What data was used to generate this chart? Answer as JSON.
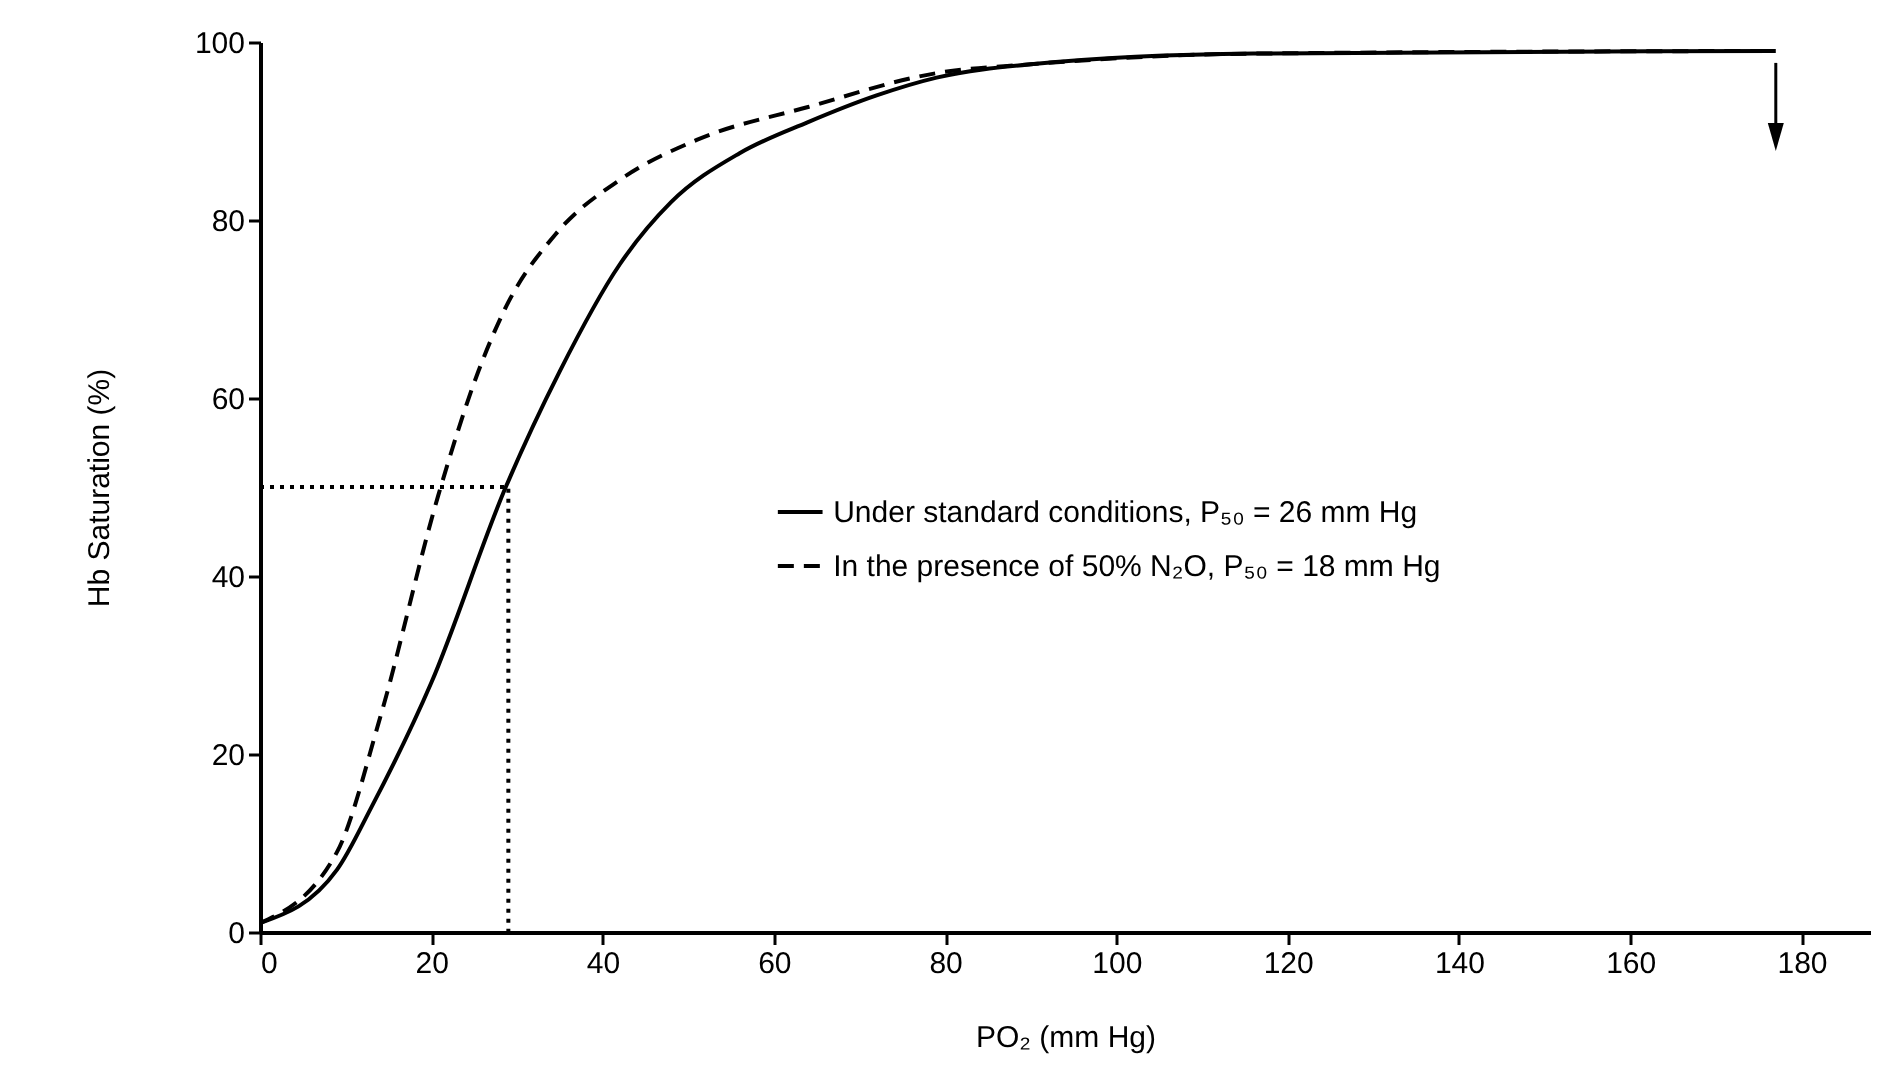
{
  "chart_data": {
    "type": "line",
    "xlabel": "PO₂ (mm Hg)",
    "ylabel": "Hb Saturation (%)",
    "xlim": [
      0,
      188
    ],
    "xticks": [
      0,
      20,
      40,
      60,
      80,
      100,
      120,
      140,
      160,
      180
    ],
    "ylim": [
      0,
      100
    ],
    "yticks": [
      0,
      20,
      40,
      60,
      80,
      100
    ],
    "grid": false,
    "legend": "right",
    "series": [
      {
        "name": "Under standard conditions, P₅₀ = 26 mm Hg",
        "color": "#000000",
        "line_style": "solid",
        "x": [
          0,
          9,
          13,
          20,
          28.7,
          35,
          42,
          48,
          56,
          64,
          72,
          79,
          90,
          116,
          177
        ],
        "values": [
          1,
          7,
          14,
          28,
          50,
          63,
          75,
          82,
          87.5,
          91,
          94,
          96,
          97.5,
          98.7,
          99
        ]
      },
      {
        "name": "In the presence of 50% N₂O, P₅₀ = 18 mm Hg",
        "color": "#000000",
        "line_style": "dashed",
        "x": [
          0,
          9,
          14,
          20.8,
          25.5,
          28.6,
          34.6,
          42,
          51,
          64,
          79,
          90,
          116,
          177
        ],
        "values": [
          1,
          9,
          24,
          49,
          63,
          70,
          78.5,
          84.5,
          89,
          92.7,
          96.5,
          97.5,
          98.7,
          99
        ]
      },
      {
        "type": "line",
        "color": "#000000",
        "line_style": "dotted",
        "x": [
          0,
          29,
          29
        ],
        "values": [
          50,
          50,
          0
        ]
      }
    ]
  }
}
